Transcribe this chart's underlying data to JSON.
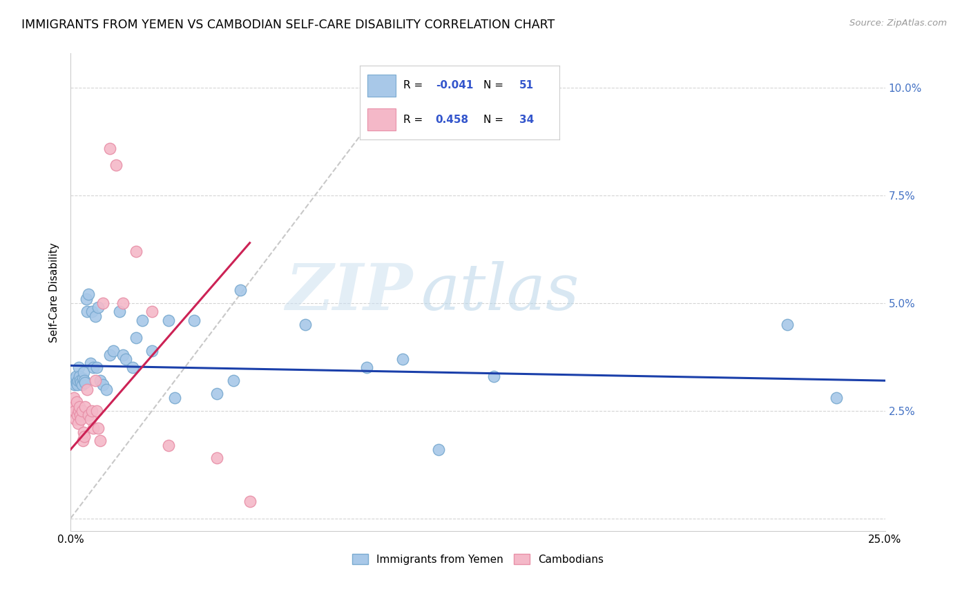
{
  "title": "IMMIGRANTS FROM YEMEN VS CAMBODIAN SELF-CARE DISABILITY CORRELATION CHART",
  "source": "Source: ZipAtlas.com",
  "ylabel": "Self-Care Disability",
  "xlim": [
    0.0,
    25.0
  ],
  "ylim": [
    -0.3,
    10.8
  ],
  "blue_color": "#a8c8e8",
  "pink_color": "#f4b8c8",
  "blue_edge": "#7aaad0",
  "pink_edge": "#e890a8",
  "trend_blue": "#1a3faa",
  "trend_pink": "#cc2255",
  "trend_gray": "#c8c8c8",
  "watermark_zip": "ZIP",
  "watermark_atlas": "atlas",
  "watermark_color_zip": "#c8dff0",
  "watermark_color_atlas": "#b0cce0",
  "blue_scatter_x": [
    0.08,
    0.1,
    0.12,
    0.14,
    0.16,
    0.18,
    0.2,
    0.22,
    0.25,
    0.28,
    0.3,
    0.32,
    0.35,
    0.38,
    0.4,
    0.42,
    0.45,
    0.48,
    0.5,
    0.55,
    0.6,
    0.65,
    0.7,
    0.75,
    0.8,
    0.85,
    0.9,
    1.0,
    1.1,
    1.2,
    1.3,
    1.5,
    1.6,
    1.7,
    1.9,
    2.0,
    2.2,
    2.5,
    3.0,
    3.2,
    3.8,
    4.5,
    5.0,
    5.2,
    7.2,
    9.1,
    10.2,
    11.3,
    13.0,
    22.0,
    23.5
  ],
  "blue_scatter_y": [
    3.15,
    3.2,
    3.1,
    3.25,
    3.3,
    3.15,
    3.1,
    3.2,
    3.5,
    3.3,
    3.2,
    3.15,
    3.1,
    3.25,
    3.4,
    3.2,
    3.15,
    5.1,
    4.8,
    5.2,
    3.6,
    4.8,
    3.5,
    4.7,
    3.5,
    4.9,
    3.2,
    3.1,
    3.0,
    3.8,
    3.9,
    4.8,
    3.8,
    3.7,
    3.5,
    4.2,
    4.6,
    3.9,
    4.6,
    2.8,
    4.6,
    2.9,
    3.2,
    5.3,
    4.5,
    3.5,
    3.7,
    1.6,
    3.3,
    4.5,
    2.8
  ],
  "pink_scatter_x": [
    0.08,
    0.1,
    0.12,
    0.15,
    0.18,
    0.2,
    0.22,
    0.25,
    0.28,
    0.3,
    0.32,
    0.35,
    0.38,
    0.4,
    0.42,
    0.45,
    0.5,
    0.55,
    0.6,
    0.65,
    0.7,
    0.75,
    0.8,
    0.85,
    0.9,
    1.0,
    1.2,
    1.4,
    1.6,
    2.0,
    2.5,
    3.0,
    4.5,
    5.5
  ],
  "pink_scatter_y": [
    2.6,
    2.8,
    2.5,
    2.3,
    2.7,
    2.4,
    2.2,
    2.5,
    2.6,
    2.4,
    2.3,
    2.5,
    1.8,
    2.0,
    1.9,
    2.6,
    3.0,
    2.4,
    2.3,
    2.5,
    2.1,
    3.2,
    2.5,
    2.1,
    1.8,
    5.0,
    8.6,
    8.2,
    5.0,
    6.2,
    4.8,
    1.7,
    1.4,
    0.4
  ],
  "blue_trend_x0": 0.0,
  "blue_trend_y0": 3.55,
  "blue_trend_x1": 25.0,
  "blue_trend_y1": 3.2,
  "pink_trend_x0": 0.0,
  "pink_trend_y0": 1.6,
  "pink_trend_x1": 5.5,
  "pink_trend_y1": 6.4,
  "diag_x0": 0.0,
  "diag_y0": 0.0,
  "diag_x1": 10.5,
  "diag_y1": 10.5
}
